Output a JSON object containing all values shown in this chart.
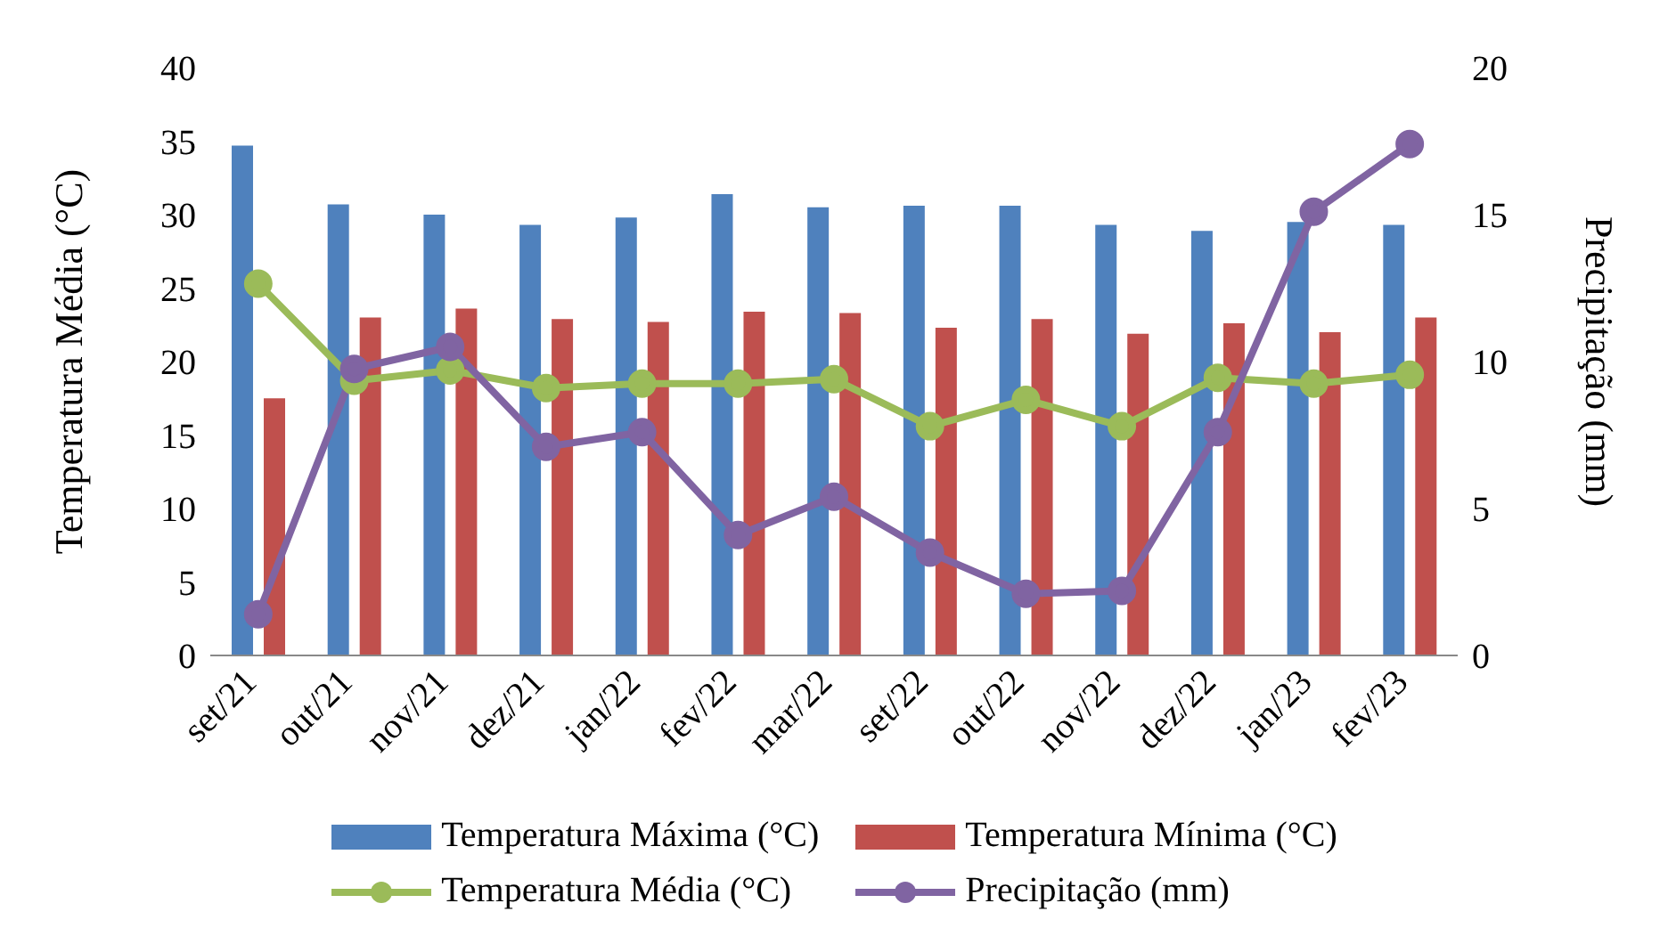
{
  "chart_data": {
    "type": "bar",
    "ylabel": "Temperatura Média (°C)",
    "y2label": "Precipitação (mm)",
    "categories": [
      "set/21",
      "out/21",
      "nov/21",
      "dez/21",
      "jan/22",
      "fev/22",
      "mar/22",
      "set/22",
      "out/22",
      "nov/22",
      "dez/22",
      "jan/23",
      "fev/23"
    ],
    "series": [
      {
        "name": "Temperatura Máxima (°C)",
        "color": "#4f81bd",
        "values": [
          34.7,
          30.7,
          30.0,
          29.3,
          29.8,
          31.4,
          30.5,
          30.6,
          30.6,
          29.3,
          28.9,
          29.5,
          29.3
        ]
      },
      {
        "name": "Temperatura Mínima (°C)",
        "color": "#c0504d",
        "values": [
          17.5,
          23.0,
          23.6,
          22.9,
          22.7,
          23.4,
          23.3,
          22.3,
          22.9,
          21.9,
          22.6,
          22.0,
          23.0
        ]
      },
      {
        "name": "Temperatura Média (°C)",
        "type": "line",
        "color": "#9bbb59",
        "values": [
          25.3,
          18.7,
          19.4,
          18.2,
          18.5,
          18.5,
          18.8,
          15.6,
          17.4,
          15.6,
          18.9,
          18.5,
          19.1
        ]
      },
      {
        "name": "Precipitação (mm)",
        "type": "line",
        "axis": "y2",
        "color": "#8064a2",
        "values": [
          1.4,
          9.75,
          10.5,
          7.1,
          7.6,
          4.1,
          5.4,
          3.5,
          2.1,
          2.2,
          7.6,
          15.1,
          17.4
        ]
      }
    ],
    "ylim": [
      0,
      40
    ],
    "yticks": [
      0,
      5,
      10,
      15,
      20,
      25,
      30,
      35,
      40
    ],
    "y2lim": [
      0,
      20
    ],
    "y2ticks": [
      0,
      5,
      10,
      15,
      20
    ],
    "legend": "bottom",
    "marker": "circle",
    "line_style": "solid"
  }
}
